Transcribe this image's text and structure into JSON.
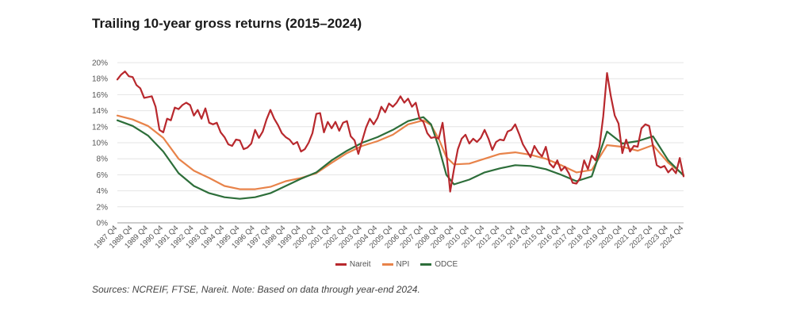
{
  "title": "Trailing 10-year gross returns (2015–2024)",
  "source_note": "Sources: NCREIF, FTSE, Nareit. Note: Based on data through year-end 2024.",
  "chart_data": {
    "type": "line",
    "ylim": [
      0,
      20
    ],
    "yticks": [
      "0%",
      "2%",
      "4%",
      "6%",
      "8%",
      "10%",
      "12%",
      "14%",
      "16%",
      "18%",
      "20%"
    ],
    "xticks": [
      "1987 Q4",
      "1988 Q4",
      "1989 Q4",
      "1990 Q4",
      "1991 Q4",
      "1992 Q4",
      "1993 Q4",
      "1994 Q4",
      "1995 Q4",
      "1996 Q4",
      "1997 Q4",
      "1998 Q4",
      "1999 Q4",
      "2000 Q4",
      "2001 Q4",
      "2002 Q4",
      "2003 Q4",
      "2004 Q4",
      "2005 Q4",
      "2006 Q4",
      "2007 Q4",
      "2008 Q4",
      "2009 Q4",
      "2010 Q4",
      "2011 Q4",
      "2012 Q4",
      "2013 Q4",
      "2014 Q4",
      "2015 Q4",
      "2016 Q4",
      "2017 Q4",
      "2018 Q4",
      "2019 Q4",
      "2020 Q4",
      "2021 Q4",
      "2022 Q4",
      "2023 Q4",
      "2024 Q4"
    ],
    "x_start": 1987.75,
    "x_end": 2024.75,
    "grid": true,
    "legend_position": "bottom-center",
    "series": [
      {
        "name": "Nareit",
        "color": "#b8282d",
        "points": [
          [
            1987.75,
            17.9
          ],
          [
            1988.0,
            18.5
          ],
          [
            1988.25,
            18.9
          ],
          [
            1988.5,
            18.3
          ],
          [
            1988.75,
            18.2
          ],
          [
            1989.0,
            17.2
          ],
          [
            1989.25,
            16.8
          ],
          [
            1989.5,
            15.6
          ],
          [
            1989.75,
            15.7
          ],
          [
            1990.0,
            15.8
          ],
          [
            1990.25,
            14.5
          ],
          [
            1990.5,
            11.6
          ],
          [
            1990.75,
            11.3
          ],
          [
            1991.0,
            13.0
          ],
          [
            1991.25,
            12.8
          ],
          [
            1991.5,
            14.4
          ],
          [
            1991.75,
            14.2
          ],
          [
            1992.0,
            14.7
          ],
          [
            1992.25,
            15.0
          ],
          [
            1992.5,
            14.7
          ],
          [
            1992.75,
            13.4
          ],
          [
            1993.0,
            14.1
          ],
          [
            1993.25,
            13.0
          ],
          [
            1993.5,
            14.3
          ],
          [
            1993.75,
            12.5
          ],
          [
            1994.0,
            12.3
          ],
          [
            1994.25,
            12.5
          ],
          [
            1994.5,
            11.3
          ],
          [
            1994.75,
            10.7
          ],
          [
            1995.0,
            9.8
          ],
          [
            1995.25,
            9.6
          ],
          [
            1995.5,
            10.4
          ],
          [
            1995.75,
            10.3
          ],
          [
            1996.0,
            9.2
          ],
          [
            1996.25,
            9.4
          ],
          [
            1996.5,
            9.9
          ],
          [
            1996.75,
            11.6
          ],
          [
            1997.0,
            10.6
          ],
          [
            1997.25,
            11.4
          ],
          [
            1997.5,
            12.9
          ],
          [
            1997.75,
            14.1
          ],
          [
            1998.0,
            13.0
          ],
          [
            1998.25,
            12.2
          ],
          [
            1998.5,
            11.2
          ],
          [
            1998.75,
            10.7
          ],
          [
            1999.0,
            10.4
          ],
          [
            1999.25,
            9.8
          ],
          [
            1999.5,
            10.1
          ],
          [
            1999.75,
            8.9
          ],
          [
            2000.0,
            9.2
          ],
          [
            2000.25,
            10.0
          ],
          [
            2000.5,
            11.2
          ],
          [
            2000.75,
            13.6
          ],
          [
            2001.0,
            13.7
          ],
          [
            2001.25,
            11.3
          ],
          [
            2001.5,
            12.6
          ],
          [
            2001.75,
            11.8
          ],
          [
            2002.0,
            12.6
          ],
          [
            2002.25,
            11.5
          ],
          [
            2002.5,
            12.5
          ],
          [
            2002.75,
            12.7
          ],
          [
            2003.0,
            10.8
          ],
          [
            2003.25,
            10.3
          ],
          [
            2003.5,
            8.6
          ],
          [
            2003.75,
            10.3
          ],
          [
            2004.0,
            11.9
          ],
          [
            2004.25,
            13.0
          ],
          [
            2004.5,
            12.3
          ],
          [
            2004.75,
            13.1
          ],
          [
            2005.0,
            14.5
          ],
          [
            2005.25,
            13.8
          ],
          [
            2005.5,
            14.9
          ],
          [
            2005.75,
            14.5
          ],
          [
            2006.0,
            15.0
          ],
          [
            2006.25,
            15.8
          ],
          [
            2006.5,
            15.0
          ],
          [
            2006.75,
            15.5
          ],
          [
            2007.0,
            14.5
          ],
          [
            2007.25,
            15.0
          ],
          [
            2007.5,
            13.0
          ],
          [
            2007.75,
            12.6
          ],
          [
            2008.0,
            11.2
          ],
          [
            2008.25,
            10.6
          ],
          [
            2008.5,
            10.7
          ],
          [
            2008.75,
            10.5
          ],
          [
            2009.0,
            12.5
          ],
          [
            2009.25,
            8.7
          ],
          [
            2009.5,
            3.9
          ],
          [
            2009.75,
            6.7
          ],
          [
            2010.0,
            9.2
          ],
          [
            2010.25,
            10.5
          ],
          [
            2010.5,
            11.0
          ],
          [
            2010.75,
            9.9
          ],
          [
            2011.0,
            10.5
          ],
          [
            2011.25,
            10.1
          ],
          [
            2011.5,
            10.6
          ],
          [
            2011.75,
            11.6
          ],
          [
            2012.0,
            10.5
          ],
          [
            2012.25,
            9.1
          ],
          [
            2012.5,
            10.1
          ],
          [
            2012.75,
            10.4
          ],
          [
            2013.0,
            10.3
          ],
          [
            2013.25,
            11.4
          ],
          [
            2013.5,
            11.6
          ],
          [
            2013.75,
            12.3
          ],
          [
            2014.0,
            11.1
          ],
          [
            2014.25,
            9.8
          ],
          [
            2014.5,
            9.0
          ],
          [
            2014.75,
            8.2
          ],
          [
            2015.0,
            9.6
          ],
          [
            2015.25,
            8.8
          ],
          [
            2015.5,
            8.3
          ],
          [
            2015.75,
            9.5
          ],
          [
            2016.0,
            7.4
          ],
          [
            2016.25,
            6.9
          ],
          [
            2016.5,
            7.8
          ],
          [
            2016.75,
            6.5
          ],
          [
            2017.0,
            7.0
          ],
          [
            2017.25,
            6.2
          ],
          [
            2017.5,
            5.0
          ],
          [
            2017.75,
            4.9
          ],
          [
            2018.0,
            5.6
          ],
          [
            2018.25,
            7.8
          ],
          [
            2018.5,
            6.7
          ],
          [
            2018.75,
            8.4
          ],
          [
            2019.0,
            7.8
          ],
          [
            2019.25,
            9.5
          ],
          [
            2019.5,
            13.3
          ],
          [
            2019.75,
            18.7
          ],
          [
            2020.0,
            15.8
          ],
          [
            2020.25,
            13.4
          ],
          [
            2020.5,
            12.4
          ],
          [
            2020.75,
            8.7
          ],
          [
            2021.0,
            10.4
          ],
          [
            2021.25,
            8.9
          ],
          [
            2021.5,
            9.6
          ],
          [
            2021.75,
            9.5
          ],
          [
            2022.0,
            11.8
          ],
          [
            2022.25,
            12.3
          ],
          [
            2022.5,
            12.1
          ],
          [
            2022.75,
            9.6
          ],
          [
            2023.0,
            7.2
          ],
          [
            2023.25,
            6.9
          ],
          [
            2023.5,
            7.1
          ],
          [
            2023.75,
            6.3
          ],
          [
            2024.0,
            6.8
          ],
          [
            2024.25,
            6.2
          ],
          [
            2024.5,
            8.1
          ],
          [
            2024.75,
            5.8
          ]
        ]
      },
      {
        "name": "NPI",
        "color": "#e8834a",
        "points": [
          [
            1987.75,
            13.4
          ],
          [
            1988.75,
            12.9
          ],
          [
            1989.75,
            12.1
          ],
          [
            1990.75,
            10.6
          ],
          [
            1991.75,
            8.0
          ],
          [
            1992.75,
            6.5
          ],
          [
            1993.75,
            5.6
          ],
          [
            1994.75,
            4.6
          ],
          [
            1995.75,
            4.2
          ],
          [
            1996.75,
            4.2
          ],
          [
            1997.75,
            4.5
          ],
          [
            1998.75,
            5.2
          ],
          [
            1999.75,
            5.6
          ],
          [
            2000.75,
            6.2
          ],
          [
            2001.75,
            7.5
          ],
          [
            2002.75,
            8.7
          ],
          [
            2003.75,
            9.6
          ],
          [
            2004.75,
            10.2
          ],
          [
            2005.75,
            11.0
          ],
          [
            2006.75,
            12.3
          ],
          [
            2007.75,
            12.8
          ],
          [
            2008.25,
            12.2
          ],
          [
            2008.75,
            10.5
          ],
          [
            2009.25,
            8.2
          ],
          [
            2009.75,
            7.3
          ],
          [
            2010.75,
            7.4
          ],
          [
            2011.75,
            8.0
          ],
          [
            2012.75,
            8.6
          ],
          [
            2013.75,
            8.8
          ],
          [
            2014.75,
            8.5
          ],
          [
            2015.75,
            8.0
          ],
          [
            2016.75,
            7.2
          ],
          [
            2017.75,
            6.3
          ],
          [
            2018.75,
            6.6
          ],
          [
            2019.75,
            9.7
          ],
          [
            2020.75,
            9.5
          ],
          [
            2021.75,
            9.0
          ],
          [
            2022.75,
            9.7
          ],
          [
            2023.75,
            7.5
          ],
          [
            2024.75,
            6.0
          ]
        ]
      },
      {
        "name": "ODCE",
        "color": "#2d6e3a",
        "points": [
          [
            1987.75,
            12.8
          ],
          [
            1988.75,
            12.1
          ],
          [
            1989.75,
            10.9
          ],
          [
            1990.75,
            8.9
          ],
          [
            1991.75,
            6.2
          ],
          [
            1992.75,
            4.6
          ],
          [
            1993.75,
            3.7
          ],
          [
            1994.75,
            3.2
          ],
          [
            1995.75,
            3.0
          ],
          [
            1996.75,
            3.2
          ],
          [
            1997.75,
            3.7
          ],
          [
            1998.75,
            4.6
          ],
          [
            1999.75,
            5.5
          ],
          [
            2000.75,
            6.3
          ],
          [
            2001.75,
            7.8
          ],
          [
            2002.75,
            9.0
          ],
          [
            2003.75,
            10.0
          ],
          [
            2004.75,
            10.7
          ],
          [
            2005.75,
            11.6
          ],
          [
            2006.75,
            12.7
          ],
          [
            2007.75,
            13.2
          ],
          [
            2008.25,
            12.3
          ],
          [
            2008.75,
            9.5
          ],
          [
            2009.25,
            6.0
          ],
          [
            2009.75,
            4.8
          ],
          [
            2010.75,
            5.4
          ],
          [
            2011.75,
            6.3
          ],
          [
            2012.75,
            6.8
          ],
          [
            2013.75,
            7.2
          ],
          [
            2014.75,
            7.1
          ],
          [
            2015.75,
            6.7
          ],
          [
            2016.75,
            6.0
          ],
          [
            2017.75,
            5.2
          ],
          [
            2018.75,
            5.8
          ],
          [
            2019.75,
            11.4
          ],
          [
            2020.75,
            9.9
          ],
          [
            2021.75,
            10.2
          ],
          [
            2022.75,
            10.8
          ],
          [
            2023.75,
            7.8
          ],
          [
            2024.75,
            5.9
          ]
        ]
      }
    ]
  }
}
